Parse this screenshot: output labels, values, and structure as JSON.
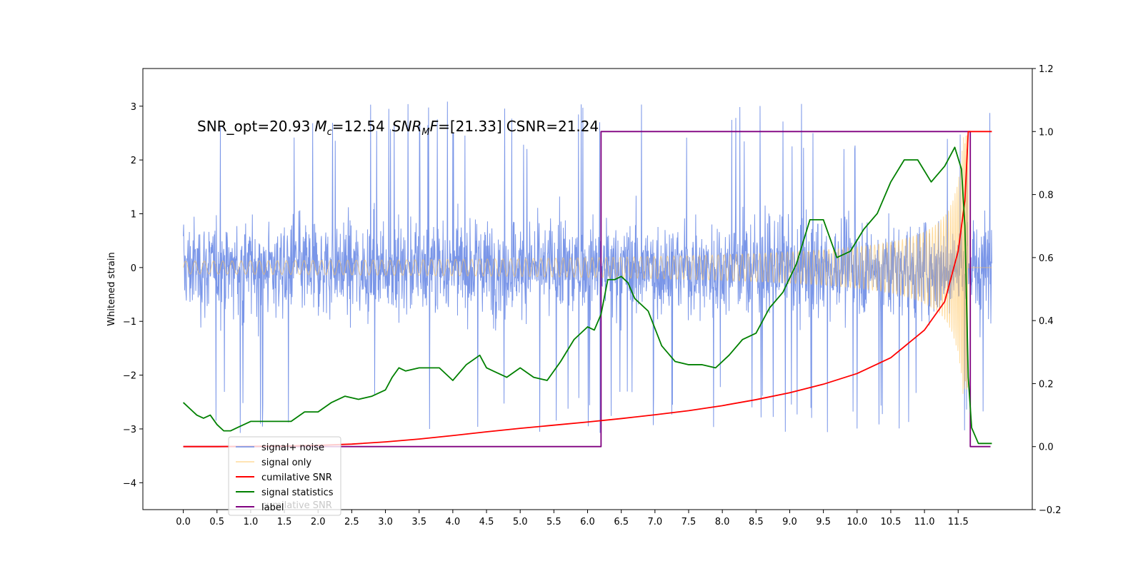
{
  "chart_data": {
    "type": "line",
    "title": "",
    "annotation": {
      "snr_opt_label": "SNR_opt=20.93",
      "mc_symbol": "M",
      "mc_sub": "c",
      "mc_value": "=12.54",
      "snrmf_symbol": "SNR",
      "snrmf_sub": "M",
      "snrmf_tail": "F",
      "snrmf_value": "=[21.33]",
      "csnr_label": "CSNR=21.24"
    },
    "xlabel": "",
    "ylabel": "Whitened strain",
    "xlim": [
      -0.6,
      12.6
    ],
    "ylim_left": [
      -4.5,
      3.7
    ],
    "ylim_right": [
      -0.2,
      1.2
    ],
    "x_ticks": [
      "0.0",
      "0.5",
      "1.0",
      "1.5",
      "2.0",
      "2.5",
      "3.0",
      "3.5",
      "4.0",
      "4.5",
      "5.0",
      "5.5",
      "6.0",
      "6.5",
      "7.0",
      "7.5",
      "8.0",
      "8.5",
      "9.0",
      "9.5",
      "10.0",
      "10.5",
      "11.0",
      "11.5"
    ],
    "y_left_ticks": [
      "3",
      "2",
      "1",
      "0",
      "−1",
      "−2",
      "−3",
      "−4"
    ],
    "y_right_ticks": [
      "1.2",
      "1.0",
      "0.8",
      "0.6",
      "0.4",
      "0.2",
      "0.0",
      "−0.2"
    ],
    "grid": false,
    "legend_placement": "lower-left",
    "ghost_legend_text": "cumilative SNR",
    "series": [
      {
        "name": "signal+ noise",
        "axis": "left",
        "color": "#6b8be6",
        "description": "whitened noisy strain, |amplitude| typically within ±2, spikes to about ±3.2",
        "x_range": [
          0.0,
          12.0
        ],
        "band_amplitude": 1.9
      },
      {
        "name": "signal only",
        "axis": "left",
        "color": "#ffc35a",
        "description": "chirp signal, amplitude grows from ~0 to ~2.5 near t=11.65 s then drops to 0",
        "x_range": [
          0.0,
          12.0
        ],
        "merger_time": 11.65
      },
      {
        "name": "cumilative SNR",
        "axis": "right",
        "color": "#ff0000",
        "x": [
          0.0,
          0.5,
          1.0,
          1.5,
          2.0,
          2.5,
          3.0,
          3.5,
          4.0,
          4.5,
          5.0,
          5.5,
          6.0,
          6.5,
          7.0,
          7.5,
          8.0,
          8.5,
          9.0,
          9.5,
          10.0,
          10.5,
          11.0,
          11.3,
          11.5,
          11.6,
          11.65,
          11.7,
          12.0
        ],
        "y": [
          0.0,
          0.0,
          0.001,
          0.002,
          0.004,
          0.008,
          0.015,
          0.024,
          0.035,
          0.047,
          0.058,
          0.068,
          0.078,
          0.089,
          0.101,
          0.114,
          0.13,
          0.149,
          0.171,
          0.198,
          0.232,
          0.282,
          0.37,
          0.46,
          0.62,
          0.78,
          1.0,
          1.0,
          1.0
        ]
      },
      {
        "name": "signal statistics",
        "axis": "right",
        "color": "#008000",
        "x": [
          0.0,
          0.1,
          0.2,
          0.3,
          0.4,
          0.5,
          0.6,
          0.7,
          0.8,
          0.9,
          1.0,
          1.2,
          1.4,
          1.6,
          1.8,
          2.0,
          2.2,
          2.4,
          2.6,
          2.8,
          3.0,
          3.1,
          3.2,
          3.3,
          3.5,
          3.8,
          4.0,
          4.2,
          4.4,
          4.5,
          4.6,
          4.8,
          5.0,
          5.2,
          5.4,
          5.6,
          5.8,
          6.0,
          6.1,
          6.2,
          6.3,
          6.4,
          6.5,
          6.6,
          6.7,
          6.9,
          7.1,
          7.3,
          7.5,
          7.7,
          7.9,
          8.1,
          8.3,
          8.5,
          8.7,
          8.9,
          9.1,
          9.3,
          9.5,
          9.7,
          9.9,
          10.1,
          10.3,
          10.5,
          10.7,
          10.9,
          11.1,
          11.3,
          11.45,
          11.55,
          11.6,
          11.65,
          11.7,
          11.8,
          11.9,
          12.0
        ],
        "y": [
          0.14,
          0.12,
          0.1,
          0.09,
          0.1,
          0.07,
          0.05,
          0.05,
          0.06,
          0.07,
          0.08,
          0.08,
          0.08,
          0.08,
          0.11,
          0.11,
          0.14,
          0.16,
          0.15,
          0.16,
          0.18,
          0.22,
          0.25,
          0.24,
          0.25,
          0.25,
          0.21,
          0.26,
          0.29,
          0.25,
          0.24,
          0.22,
          0.25,
          0.22,
          0.21,
          0.27,
          0.34,
          0.38,
          0.37,
          0.42,
          0.53,
          0.53,
          0.54,
          0.52,
          0.47,
          0.43,
          0.32,
          0.27,
          0.26,
          0.26,
          0.25,
          0.29,
          0.34,
          0.36,
          0.44,
          0.49,
          0.58,
          0.72,
          0.72,
          0.6,
          0.62,
          0.69,
          0.74,
          0.84,
          0.91,
          0.91,
          0.84,
          0.89,
          0.95,
          0.88,
          0.7,
          0.22,
          0.06,
          0.01,
          0.01,
          0.01
        ]
      },
      {
        "name": "label",
        "axis": "right",
        "color": "#800080",
        "x": [
          0.0,
          6.15,
          6.15,
          6.2,
          6.2,
          11.6,
          11.65,
          11.68,
          11.68,
          11.98
        ],
        "y": [
          0.0,
          0.0,
          0.0,
          0.0,
          1.0,
          1.0,
          1.0,
          1.0,
          0.0,
          0.0
        ]
      }
    ]
  }
}
